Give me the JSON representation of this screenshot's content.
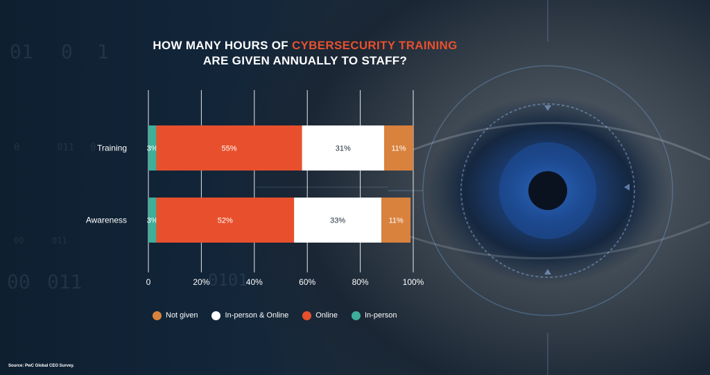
{
  "title": {
    "line1_prefix": "HOW MANY HOURS OF ",
    "line1_highlight": "CYBERSECURITY TRAINING",
    "line2": "ARE GIVEN ANNUALLY TO STAFF?"
  },
  "background_text": [
    "01",
    "0",
    "1",
    "00",
    "011",
    "0",
    "011",
    "0",
    "00",
    "011",
    "0101"
  ],
  "colors": {
    "in_person": "#3fae9a",
    "online": "#e8502d",
    "in_person_online": "#ffffff",
    "not_given": "#d9823e",
    "highlight": "#e8502d",
    "grid": "#ffffff"
  },
  "chart_data": {
    "type": "bar",
    "orientation": "horizontal",
    "stacked": true,
    "categories": [
      "Training",
      "Awareness"
    ],
    "series": [
      {
        "name": "In-person",
        "values": [
          3,
          3
        ],
        "labels": [
          "3%",
          "3%"
        ]
      },
      {
        "name": "Online",
        "values": [
          55,
          52
        ],
        "labels": [
          "55%",
          "52%"
        ]
      },
      {
        "name": "In-person & Online",
        "values": [
          31,
          33
        ],
        "labels": [
          "31%",
          "33%"
        ]
      },
      {
        "name": "Not given",
        "values": [
          11,
          11
        ],
        "labels": [
          "11%",
          "11%"
        ]
      }
    ],
    "xlim": [
      0,
      100
    ],
    "xticks": [
      "0",
      "20%",
      "40%",
      "60%",
      "80%",
      "100%"
    ],
    "grid": true,
    "legend_placement": "bottom"
  },
  "legend": [
    {
      "label": "Not given",
      "color_key": "not_given"
    },
    {
      "label": "In-person & Online",
      "color_key": "in_person_online"
    },
    {
      "label": "Online",
      "color_key": "online"
    },
    {
      "label": "In-person",
      "color_key": "in_person"
    }
  ],
  "source": "Source: PwC Global CEO Survey."
}
